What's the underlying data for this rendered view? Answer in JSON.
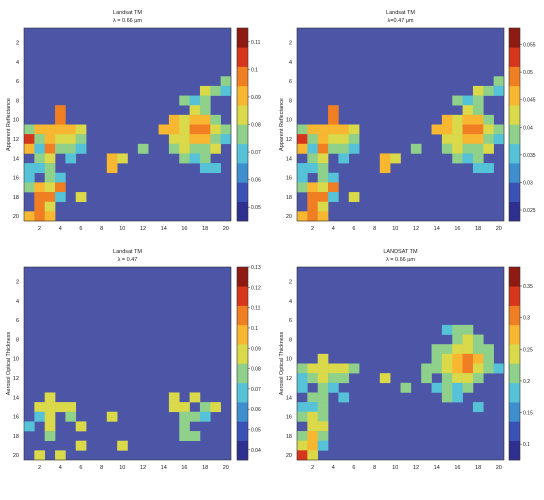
{
  "chart_data": [
    {
      "type": "heatmap",
      "title": "Landsat TM",
      "subtitle": "λ = 0.66 µm",
      "ylabel": "Apparent Reflectance",
      "xlabel": "",
      "x_ticks": [
        "2",
        "4",
        "6",
        "8",
        "10",
        "12",
        "14",
        "16",
        "18",
        "20"
      ],
      "y_ticks": [
        "2",
        "4",
        "6",
        "8",
        "10",
        "12",
        "14",
        "16",
        "18",
        "20"
      ],
      "grid_size": [
        20,
        20
      ],
      "colorbar": {
        "min": 0.045,
        "max": 0.115,
        "ticks": [
          "0.05",
          "0.06",
          "0.07",
          "0.08",
          "0.09",
          "0.1",
          "0.11"
        ]
      }
    },
    {
      "type": "heatmap",
      "title": "Landsat TM",
      "subtitle": "λ=0.47 µm",
      "ylabel": "Apparent Reflectance",
      "xlabel": "",
      "x_ticks": [
        "2",
        "4",
        "6",
        "8",
        "10",
        "12",
        "14",
        "16",
        "18",
        "20"
      ],
      "y_ticks": [
        "2",
        "4",
        "6",
        "8",
        "10",
        "12",
        "14",
        "16",
        "18",
        "20"
      ],
      "grid_size": [
        20,
        20
      ],
      "colorbar": {
        "min": 0.023,
        "max": 0.058,
        "ticks": [
          "0.025",
          "0.03",
          "0.035",
          "0.04",
          "0.045",
          "0.05",
          "0.055"
        ]
      }
    },
    {
      "type": "heatmap",
      "title": "Landsat TM",
      "subtitle": "λ = 0.47",
      "ylabel": "Aerosol Optical Thickness",
      "xlabel": "",
      "x_ticks": [
        "2",
        "4",
        "6",
        "8",
        "10",
        "12",
        "14",
        "16",
        "18",
        "20"
      ],
      "y_ticks": [
        "2",
        "4",
        "6",
        "8",
        "10",
        "12",
        "14",
        "16",
        "18",
        "20"
      ],
      "grid_size": [
        20,
        20
      ],
      "colorbar": {
        "min": 0.035,
        "max": 0.13,
        "ticks": [
          "0.04",
          "0.05",
          "0.06",
          "0.07",
          "0.08",
          "0.09",
          "0.1",
          "0.11",
          "0.12",
          "0.13"
        ]
      }
    },
    {
      "type": "heatmap",
      "title": "LANDSAT TM",
      "subtitle": "λ = 0.66 µm",
      "ylabel": "Aerosol Optical Thickness",
      "xlabel": "",
      "x_ticks": [
        "2",
        "4",
        "6",
        "8",
        "10",
        "12",
        "14",
        "16",
        "18",
        "20"
      ],
      "y_ticks": [
        "2",
        "4",
        "6",
        "8",
        "10",
        "12",
        "14",
        "16",
        "18",
        "20"
      ],
      "grid_size": [
        20,
        20
      ],
      "colorbar": {
        "min": 0.075,
        "max": 0.38,
        "ticks": [
          "0.1",
          "0.15",
          "0.2",
          "0.25",
          "0.3",
          "0.35"
        ]
      }
    }
  ],
  "colors": {
    "background": "#4c55a6",
    "colormap": [
      "#2f2f8f",
      "#3a52b6",
      "#3f8fcf",
      "#56c2d8",
      "#8fd08a",
      "#d9d94a",
      "#f7b731",
      "#f07e22",
      "#d6371c",
      "#8e1a12"
    ]
  }
}
